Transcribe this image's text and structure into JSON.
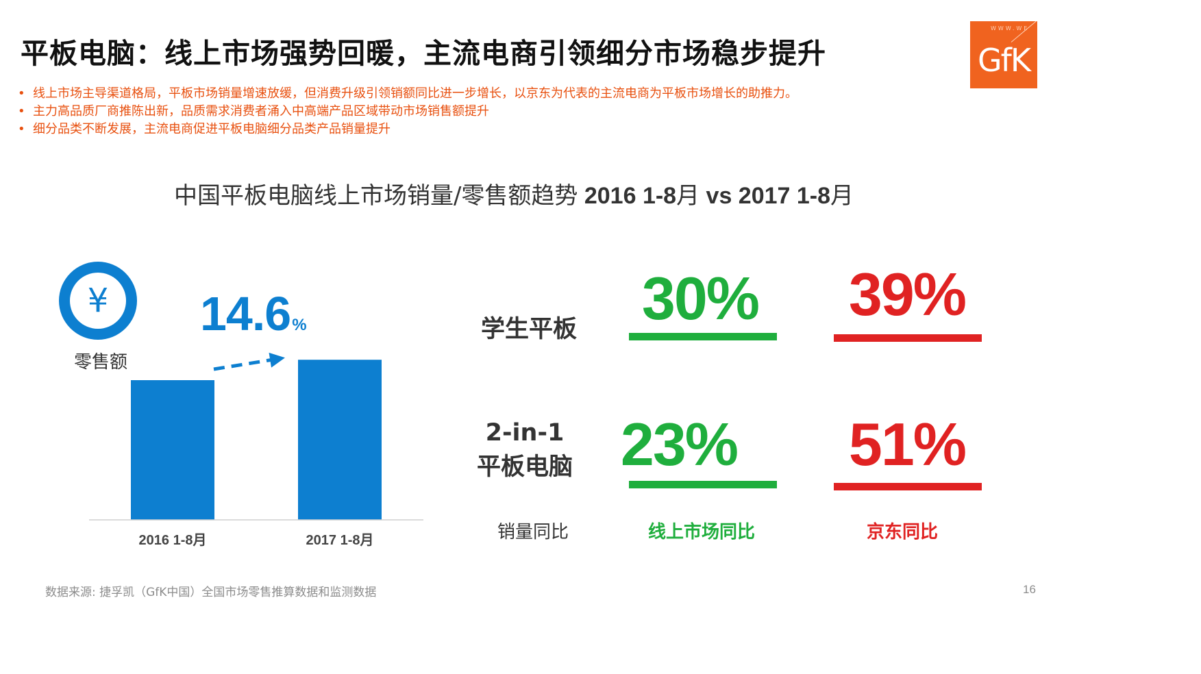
{
  "slide": {
    "title": "平板电脑：线上市场强势回暖，主流电商引领细分市场稳步提升",
    "bullets": [
      "线上市场主导渠道格局，平板市场销量增速放缓，但消费升级引领销额同比进一步增长，以京东为代表的主流电商为平板市场增长的助推力。",
      "主力高品质厂商推陈出新，品质需求消费者涌入中高端产品区域带动市场销售额提升",
      "细分品类不断发展，主流电商促进平板电脑细分品类产品销量提升"
    ],
    "chart_title_prefix": "中国平板电脑线上市场销量/零售额趋势",
    "chart_title_p1": " 2016 1-8",
    "chart_title_m1": "月",
    "chart_title_p2": " vs 2017 1-8",
    "chart_title_m2": "月",
    "source": "数据来源: 捷孚凯（GfK中国）全国市场零售推算数据和监测数据",
    "page_number": "16"
  },
  "logo": {
    "text": "GfK",
    "www": "WWW.WE"
  },
  "retail": {
    "icon": "yen-icon",
    "icon_glyph": "¥",
    "label": "零售额",
    "growth_value": "14.6",
    "growth_unit": "%"
  },
  "sales_yoy": {
    "rows": [
      {
        "label_lines": [
          "学生平板"
        ],
        "online": "30%",
        "jd": "39%"
      },
      {
        "label_lines": [
          "2-in-1",
          "平板电脑"
        ],
        "online": "23%",
        "jd": "51%"
      }
    ],
    "footer_label": "销量同比",
    "online_label": "线上市场同比",
    "jd_label": "京东同比"
  },
  "colors": {
    "bar": "#0d7fd0",
    "green": "#1fae3d",
    "red": "#e02222",
    "orange": "#e8500f"
  },
  "chart_data": {
    "type": "bar",
    "categories": [
      "2016 1-8月",
      "2017 1-8月"
    ],
    "values": [
      100,
      114.6
    ],
    "ylim": [
      0,
      125
    ],
    "grid": false,
    "annotation": "14.6%"
  }
}
